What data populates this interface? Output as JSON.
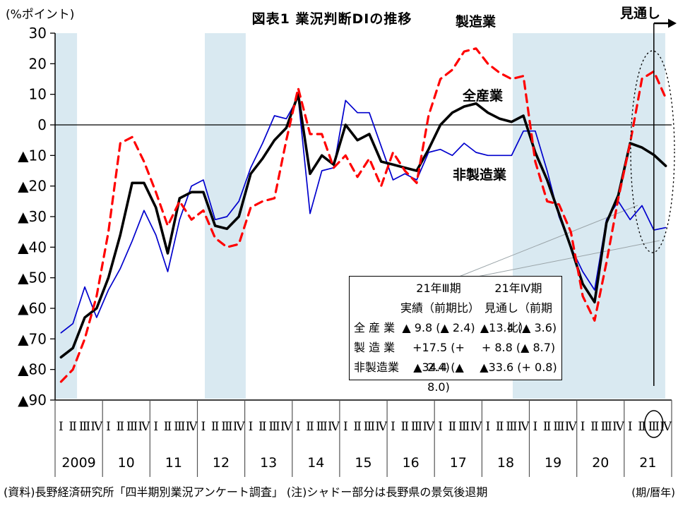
{
  "header": {
    "unit_label": "(%ポイント)",
    "title": "図表1 業況判断DIの推移",
    "forecast_label": "見通し"
  },
  "footer": {
    "source_note": "(資料)長野経済研究所「四半期別業況アンケート調査」 (注)シャドー部分は長野県の景気後退期",
    "axis_unit_note": "(期/暦年)"
  },
  "axes": {
    "y_ticks": [
      {
        "label": "30",
        "value": 30
      },
      {
        "label": "20",
        "value": 20
      },
      {
        "label": "10",
        "value": 10
      },
      {
        "label": "0",
        "value": 0
      },
      {
        "label": "▲10",
        "value": -10
      },
      {
        "label": "▲20",
        "value": -20
      },
      {
        "label": "▲30",
        "value": -30
      },
      {
        "label": "▲40",
        "value": -40
      },
      {
        "label": "▲50",
        "value": -50
      },
      {
        "label": "▲60",
        "value": -60
      },
      {
        "label": "▲70",
        "value": -70
      },
      {
        "label": "▲80",
        "value": -80
      },
      {
        "label": "▲90",
        "value": -90
      }
    ],
    "quarter_labels": [
      "Ⅰ",
      "Ⅱ",
      "Ⅲ",
      "Ⅳ"
    ],
    "year_labels": [
      "2009",
      "10",
      "11",
      "12",
      "13",
      "14",
      "15",
      "16",
      "17",
      "18",
      "19",
      "20",
      "21"
    ],
    "circled_axis_quarter": {
      "year": "21",
      "quarter": "Ⅲ",
      "quarter_index": 50
    }
  },
  "chart_data": {
    "type": "line",
    "title": "図表1 業況判断DIの推移",
    "ylabel": "(%ポイント)",
    "ylim": [
      -90,
      30
    ],
    "x_start": "2009Q1",
    "x_end": "2021Q4",
    "frequency": "quarterly",
    "n_points": 52,
    "forecast_quarter": "2021Q4",
    "series": [
      {
        "name": "全産業",
        "color": "#000000",
        "style": "solid-thick",
        "values": [
          -76,
          -73,
          -63,
          -60,
          -50,
          -36,
          -19,
          -19,
          -27,
          -42,
          -24,
          -22,
          -22,
          -33,
          -34,
          -30,
          -16,
          -11,
          -5,
          -1,
          10,
          -16,
          -10,
          -13,
          0,
          -5,
          -3,
          -12,
          -13,
          -14,
          -15,
          -8,
          0,
          4,
          6,
          7,
          4,
          2,
          1,
          3,
          -9,
          -18,
          -29,
          -40,
          -52,
          -58,
          -32,
          -23,
          -6,
          -7.4,
          -9.8,
          -13.4
        ]
      },
      {
        "name": "製造業",
        "color": "#ff0000",
        "style": "dashed",
        "values": [
          -84,
          -80,
          -70,
          -56,
          -35,
          -6,
          -4,
          -12,
          -22,
          -33,
          -25,
          -31,
          -28,
          -37,
          -40,
          -39,
          -27,
          -25,
          -24,
          -5,
          12,
          -3,
          -3,
          -14,
          -10,
          -17,
          -11,
          -20,
          -9,
          -15,
          -19,
          3,
          15,
          18,
          24,
          25,
          20,
          17,
          15,
          16,
          -12,
          -25,
          -26,
          -35,
          -56,
          -64,
          -45,
          -24,
          -6,
          15.1,
          17.5,
          8.8
        ]
      },
      {
        "name": "非製造業",
        "color": "#0000cd",
        "style": "solid-thin",
        "values": [
          -68,
          -65,
          -53,
          -63,
          -54,
          -47,
          -38,
          -28,
          -36,
          -48,
          -31,
          -20,
          -18,
          -31,
          -30,
          -25,
          -14,
          -6,
          3,
          2,
          9,
          -29,
          -15,
          -14,
          8,
          4,
          4,
          -7,
          -18,
          -16,
          -18,
          -9,
          -8,
          -10,
          -6,
          -9,
          -10,
          -10,
          -10,
          -2,
          -2,
          -15,
          -30,
          -40,
          -48,
          -54,
          -31,
          -25,
          -31,
          -26.4,
          -34.4,
          -33.6
        ]
      }
    ],
    "shaded_periods": [
      {
        "note": "景気後退期",
        "from_q": -0.5,
        "to_q": 1.35
      },
      {
        "note": "景気後退期",
        "from_q": 12.13,
        "to_q": 15.58
      },
      {
        "note": "景気後退期",
        "from_q": 38.1,
        "to_q": 50.96
      }
    ],
    "shade_color": "#d9e9f1",
    "annotations": {
      "forecast_line_quarter_index": 50,
      "highlight_ellipse_quarters": [
        48,
        51
      ]
    }
  },
  "table": {
    "col1": {
      "period": "21年Ⅲ期",
      "kind": "実績（前期比）"
    },
    "col2": {
      "period": "21年Ⅳ期",
      "kind": "見通し（前期比）"
    },
    "rows": [
      {
        "label": "全 産 業",
        "actual": "▲ 9.8 (▲ 2.4)",
        "forecast": "▲13.4 (▲ 3.6)"
      },
      {
        "label": "製 造 業",
        "actual": "+17.5 (+ 2.4)",
        "forecast": "+ 8.8 (▲ 8.7)"
      },
      {
        "label": "非製造業",
        "actual": "▲34.4 (▲ 8.0)",
        "forecast": "▲33.6 (+ 0.8)"
      }
    ]
  }
}
